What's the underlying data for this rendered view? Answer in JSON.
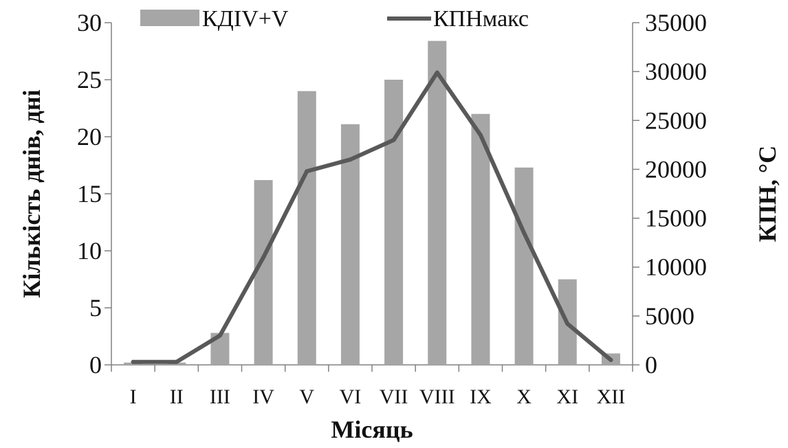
{
  "chart_data": {
    "type": "bar",
    "categories": [
      "I",
      "II",
      "III",
      "IV",
      "V",
      "VI",
      "VII",
      "VIII",
      "IX",
      "X",
      "XI",
      "XII"
    ],
    "series": [
      {
        "name": "КДІV+V",
        "type": "bar",
        "axis": "left",
        "color": "#a6a6a6",
        "values": [
          0.2,
          0.2,
          2.8,
          16.2,
          24.0,
          21.1,
          25.0,
          28.4,
          22.0,
          17.3,
          7.5,
          1.0
        ]
      },
      {
        "name": "КПНмакс",
        "type": "line",
        "axis": "right",
        "color": "#595959",
        "values": [
          300,
          300,
          3000,
          11000,
          19800,
          21000,
          23000,
          29900,
          23500,
          13500,
          4200,
          500
        ]
      }
    ],
    "xlabel": "Місяць",
    "ylabel": "Кількість днів, дні",
    "y2label": "КПН, °С",
    "ylim": [
      0,
      30
    ],
    "y2lim": [
      0,
      35000
    ],
    "yticks": [
      "0",
      "5",
      "10",
      "15",
      "20",
      "25",
      "30"
    ],
    "y2ticks": [
      "0",
      "5000",
      "10000",
      "15000",
      "20000",
      "25000",
      "30000",
      "35000"
    ],
    "legend_position": "top",
    "grid": false
  }
}
